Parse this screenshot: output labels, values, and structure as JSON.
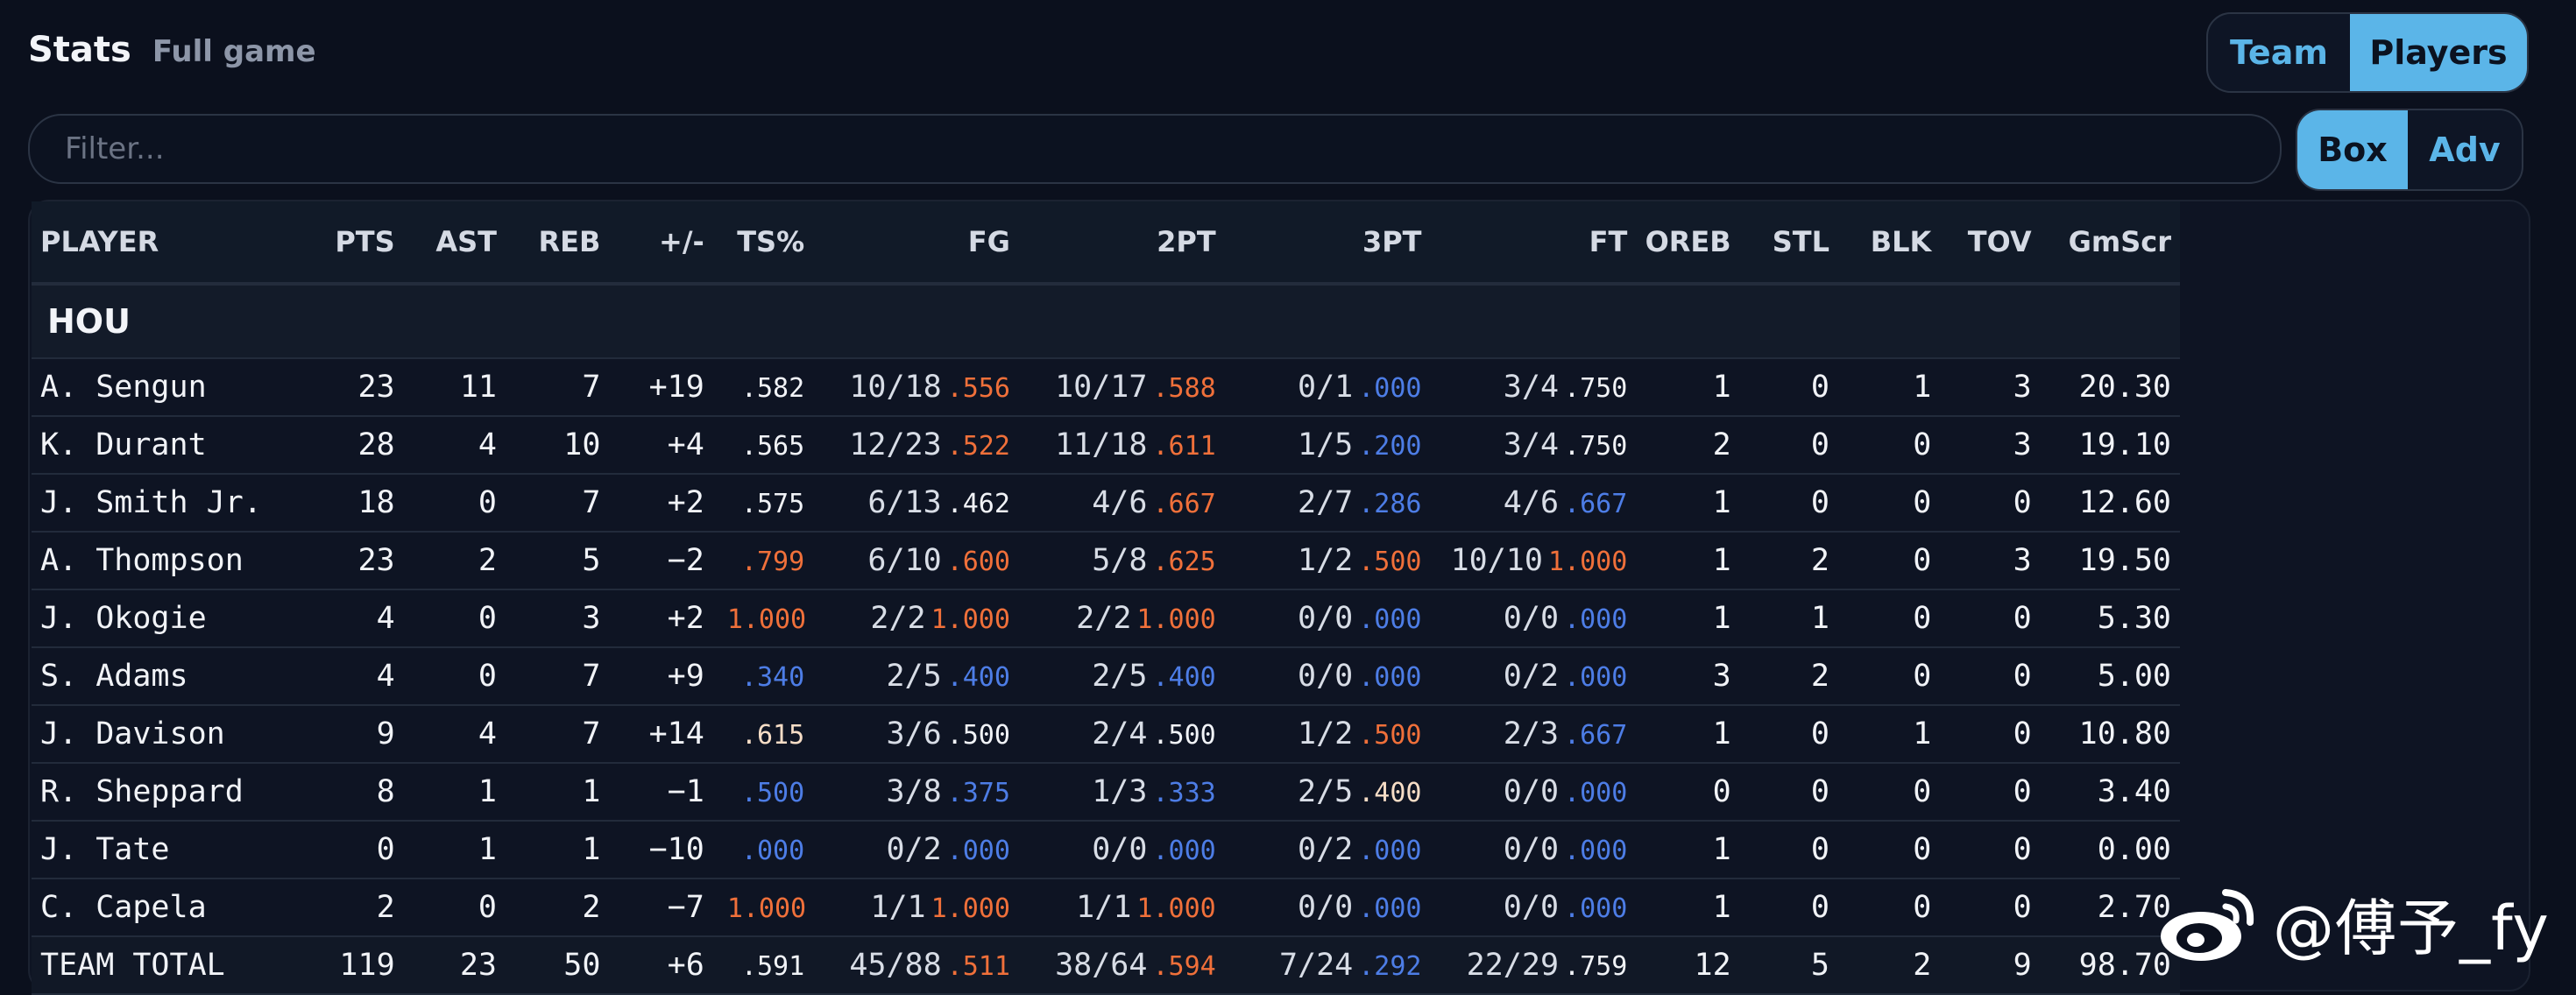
{
  "header": {
    "title": "Stats",
    "subtitle": "Full game"
  },
  "view_toggle": {
    "team": "Team",
    "players": "Players",
    "active": "players"
  },
  "mode_toggle": {
    "box": "Box",
    "adv": "Adv",
    "active": "box"
  },
  "filter": {
    "placeholder": "Filter...",
    "value": ""
  },
  "table": {
    "columns": [
      "PLAYER",
      "PTS",
      "AST",
      "REB",
      "+/-",
      "TS%",
      "FG",
      "2PT",
      "3PT",
      "FT",
      "OREB",
      "STL",
      "BLK",
      "TOV",
      "GmScr"
    ],
    "group": "HOU",
    "rows": [
      {
        "name": "A. Sengun",
        "pts": "23",
        "ast": "11",
        "reb": "7",
        "pm": "+19",
        "pm_tone": "pos",
        "ts": ".582",
        "ts_tone": "neu",
        "fg": "10/18",
        "fg_pct": ".556",
        "fg_tone": "hi",
        "p2": "10/17",
        "p2_pct": ".588",
        "p2_tone": "hi",
        "p3": "0/1",
        "p3_pct": ".000",
        "p3_tone": "lo",
        "ft": "3/4",
        "ft_pct": ".750",
        "ft_tone": "neu",
        "oreb": "1",
        "stl": "0",
        "blk": "1",
        "tov": "3",
        "gms": "20.30"
      },
      {
        "name": "K. Durant",
        "pts": "28",
        "ast": "4",
        "reb": "10",
        "pm": "+4",
        "pm_tone": "neu",
        "ts": ".565",
        "ts_tone": "neu",
        "fg": "12/23",
        "fg_pct": ".522",
        "fg_tone": "hi",
        "p2": "11/18",
        "p2_pct": ".611",
        "p2_tone": "hi",
        "p3": "1/5",
        "p3_pct": ".200",
        "p3_tone": "lo",
        "ft": "3/4",
        "ft_pct": ".750",
        "ft_tone": "neu",
        "oreb": "2",
        "stl": "0",
        "blk": "0",
        "tov": "3",
        "gms": "19.10"
      },
      {
        "name": "J. Smith Jr.",
        "pts": "18",
        "ast": "0",
        "reb": "7",
        "pm": "+2",
        "pm_tone": "neu",
        "ts": ".575",
        "ts_tone": "neu",
        "fg": "6/13",
        "fg_pct": ".462",
        "fg_tone": "neu",
        "p2": "4/6",
        "p2_pct": ".667",
        "p2_tone": "hi",
        "p3": "2/7",
        "p3_pct": ".286",
        "p3_tone": "lo",
        "ft": "4/6",
        "ft_pct": ".667",
        "ft_tone": "lo",
        "oreb": "1",
        "stl": "0",
        "blk": "0",
        "tov": "0",
        "gms": "12.60"
      },
      {
        "name": "A. Thompson",
        "pts": "23",
        "ast": "2",
        "reb": "5",
        "pm": "−2",
        "pm_tone": "neu",
        "ts": ".799",
        "ts_tone": "hi",
        "fg": "6/10",
        "fg_pct": ".600",
        "fg_tone": "hi",
        "p2": "5/8",
        "p2_pct": ".625",
        "p2_tone": "hi",
        "p3": "1/2",
        "p3_pct": ".500",
        "p3_tone": "hi",
        "ft": "10/10",
        "ft_pct": "1.000",
        "ft_tone": "hi",
        "oreb": "1",
        "stl": "2",
        "blk": "0",
        "tov": "3",
        "gms": "19.50"
      },
      {
        "name": "J. Okogie",
        "pts": "4",
        "ast": "0",
        "reb": "3",
        "pm": "+2",
        "pm_tone": "neu",
        "ts": "1.000",
        "ts_tone": "hi",
        "fg": "2/2",
        "fg_pct": "1.000",
        "fg_tone": "hi",
        "p2": "2/2",
        "p2_pct": "1.000",
        "p2_tone": "hi",
        "p3": "0/0",
        "p3_pct": ".000",
        "p3_tone": "lo",
        "ft": "0/0",
        "ft_pct": ".000",
        "ft_tone": "lo",
        "oreb": "1",
        "stl": "1",
        "blk": "0",
        "tov": "0",
        "gms": "5.30"
      },
      {
        "name": "S. Adams",
        "pts": "4",
        "ast": "0",
        "reb": "7",
        "pm": "+9",
        "pm_tone": "pos",
        "ts": ".340",
        "ts_tone": "lo",
        "fg": "2/5",
        "fg_pct": ".400",
        "fg_tone": "lo",
        "p2": "2/5",
        "p2_pct": ".400",
        "p2_tone": "lo",
        "p3": "0/0",
        "p3_pct": ".000",
        "p3_tone": "lo",
        "ft": "0/2",
        "ft_pct": ".000",
        "ft_tone": "lo",
        "oreb": "3",
        "stl": "2",
        "blk": "0",
        "tov": "0",
        "gms": "5.00"
      },
      {
        "name": "J. Davison",
        "pts": "9",
        "ast": "4",
        "reb": "7",
        "pm": "+14",
        "pm_tone": "pos",
        "ts": ".615",
        "ts_tone": "mid",
        "fg": "3/6",
        "fg_pct": ".500",
        "fg_tone": "neu",
        "p2": "2/4",
        "p2_pct": ".500",
        "p2_tone": "neu",
        "p3": "1/2",
        "p3_pct": ".500",
        "p3_tone": "hi",
        "ft": "2/3",
        "ft_pct": ".667",
        "ft_tone": "lo",
        "oreb": "1",
        "stl": "0",
        "blk": "1",
        "tov": "0",
        "gms": "10.80"
      },
      {
        "name": "R. Sheppard",
        "pts": "8",
        "ast": "1",
        "reb": "1",
        "pm": "−1",
        "pm_tone": "neu",
        "ts": ".500",
        "ts_tone": "lo",
        "fg": "3/8",
        "fg_pct": ".375",
        "fg_tone": "lo",
        "p2": "1/3",
        "p2_pct": ".333",
        "p2_tone": "lo",
        "p3": "2/5",
        "p3_pct": ".400",
        "p3_tone": "mid",
        "ft": "0/0",
        "ft_pct": ".000",
        "ft_tone": "lo",
        "oreb": "0",
        "stl": "0",
        "blk": "0",
        "tov": "0",
        "gms": "3.40"
      },
      {
        "name": "J. Tate",
        "pts": "0",
        "ast": "1",
        "reb": "1",
        "pm": "−10",
        "pm_tone": "neg",
        "ts": ".000",
        "ts_tone": "lo",
        "fg": "0/2",
        "fg_pct": ".000",
        "fg_tone": "lo",
        "p2": "0/0",
        "p2_pct": ".000",
        "p2_tone": "lo",
        "p3": "0/2",
        "p3_pct": ".000",
        "p3_tone": "lo",
        "ft": "0/0",
        "ft_pct": ".000",
        "ft_tone": "lo",
        "oreb": "1",
        "stl": "0",
        "blk": "0",
        "tov": "0",
        "gms": "0.00"
      },
      {
        "name": "C. Capela",
        "pts": "2",
        "ast": "0",
        "reb": "2",
        "pm": "−7",
        "pm_tone": "neg",
        "ts": "1.000",
        "ts_tone": "hi",
        "fg": "1/1",
        "fg_pct": "1.000",
        "fg_tone": "hi",
        "p2": "1/1",
        "p2_pct": "1.000",
        "p2_tone": "hi",
        "p3": "0/0",
        "p3_pct": ".000",
        "p3_tone": "lo",
        "ft": "0/0",
        "ft_pct": ".000",
        "ft_tone": "lo",
        "oreb": "1",
        "stl": "0",
        "blk": "0",
        "tov": "0",
        "gms": "2.70"
      }
    ],
    "total": {
      "name": "TEAM TOTAL",
      "pts": "119",
      "ast": "23",
      "reb": "50",
      "pm": "+6",
      "pm_tone": "pos",
      "ts": ".591",
      "ts_tone": "neu",
      "fg": "45/88",
      "fg_pct": ".511",
      "fg_tone": "hi",
      "p2": "38/64",
      "p2_pct": ".594",
      "p2_tone": "hi",
      "p3": "7/24",
      "p3_pct": ".292",
      "p3_tone": "lo",
      "ft": "22/29",
      "ft_pct": ".759",
      "ft_tone": "neu",
      "oreb": "12",
      "stl": "5",
      "blk": "2",
      "tov": "9",
      "gms": "98.70"
    }
  },
  "watermark": {
    "text": "@傅予_fy",
    "icon": "weibo-logo"
  },
  "colors": {
    "accent": "#5bb5e8",
    "high": "#f0703a",
    "low": "#4d7de6",
    "background": "#0b101d"
  }
}
